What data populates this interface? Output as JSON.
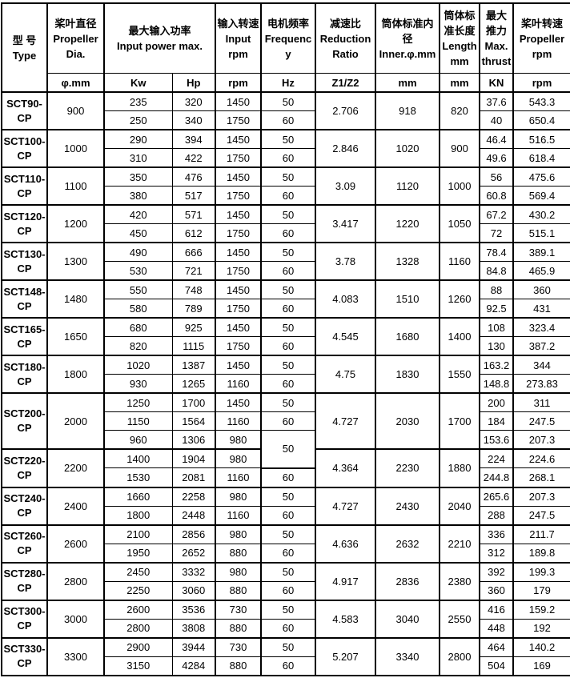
{
  "page": {
    "background": "#ffffff",
    "border_color": "#000000",
    "text_color": "#000000"
  },
  "table": {
    "header": {
      "type": "型 号\nType",
      "dia": "桨叶直径\nPropeller Dia.",
      "power": "最大输入功率\nInput power max.",
      "input_rpm": "输入转速\nInput rpm",
      "frequency": "电机频率\nFrequency",
      "ratio": "减速比\nReduction Ratio",
      "inner": "筒体标准内径\nInner.φ.mm",
      "length": "筒体标准长度\nLength mm",
      "thrust": "最大推力\nMax. thrust",
      "prop_rpm": "桨叶转速\nPropeller rpm"
    },
    "units": {
      "dia": "φ.mm",
      "kw": "Kw",
      "hp": "Hp",
      "rpm": "rpm",
      "hz": "Hz",
      "ratio": "Z1/Z2",
      "inner": "mm",
      "length": "mm",
      "thrust": "KN",
      "prop_rpm": "rpm"
    },
    "groups": [
      {
        "model": "SCT90-CP",
        "dia": "900",
        "ratio": "2.706",
        "inner": "918",
        "length": "820",
        "rows": [
          {
            "kw": "235",
            "hp": "320",
            "rpm": "1450",
            "hz": "50",
            "thrust": "37.6",
            "prop_rpm": "543.3"
          },
          {
            "kw": "250",
            "hp": "340",
            "rpm": "1750",
            "hz": "60",
            "thrust": "40",
            "prop_rpm": "650.4"
          }
        ]
      },
      {
        "model": "SCT100-CP",
        "dia": "1000",
        "ratio": "2.846",
        "inner": "1020",
        "length": "900",
        "rows": [
          {
            "kw": "290",
            "hp": "394",
            "rpm": "1450",
            "hz": "50",
            "thrust": "46.4",
            "prop_rpm": "516.5"
          },
          {
            "kw": "310",
            "hp": "422",
            "rpm": "1750",
            "hz": "60",
            "thrust": "49.6",
            "prop_rpm": "618.4"
          }
        ]
      },
      {
        "model": "SCT110-CP",
        "dia": "1100",
        "ratio": "3.09",
        "inner": "1120",
        "length": "1000",
        "rows": [
          {
            "kw": "350",
            "hp": "476",
            "rpm": "1450",
            "hz": "50",
            "thrust": "56",
            "prop_rpm": "475.6"
          },
          {
            "kw": "380",
            "hp": "517",
            "rpm": "1750",
            "hz": "60",
            "thrust": "60.8",
            "prop_rpm": "569.4"
          }
        ]
      },
      {
        "model": "SCT120-CP",
        "dia": "1200",
        "ratio": "3.417",
        "inner": "1220",
        "length": "1050",
        "rows": [
          {
            "kw": "420",
            "hp": "571",
            "rpm": "1450",
            "hz": "50",
            "thrust": "67.2",
            "prop_rpm": "430.2"
          },
          {
            "kw": "450",
            "hp": "612",
            "rpm": "1750",
            "hz": "60",
            "thrust": "72",
            "prop_rpm": "515.1"
          }
        ]
      },
      {
        "model": "SCT130-CP",
        "dia": "1300",
        "ratio": "3.78",
        "inner": "1328",
        "length": "1160",
        "rows": [
          {
            "kw": "490",
            "hp": "666",
            "rpm": "1450",
            "hz": "50",
            "thrust": "78.4",
            "prop_rpm": "389.1"
          },
          {
            "kw": "530",
            "hp": "721",
            "rpm": "1750",
            "hz": "60",
            "thrust": "84.8",
            "prop_rpm": "465.9"
          }
        ]
      },
      {
        "model": "SCT148-CP",
        "dia": "1480",
        "ratio": "4.083",
        "inner": "1510",
        "length": "1260",
        "rows": [
          {
            "kw": "550",
            "hp": "748",
            "rpm": "1450",
            "hz": "50",
            "thrust": "88",
            "prop_rpm": "360"
          },
          {
            "kw": "580",
            "hp": "789",
            "rpm": "1750",
            "hz": "60",
            "thrust": "92.5",
            "prop_rpm": "431"
          }
        ]
      },
      {
        "model": "SCT165-CP",
        "dia": "1650",
        "ratio": "4.545",
        "inner": "1680",
        "length": "1400",
        "rows": [
          {
            "kw": "680",
            "hp": "925",
            "rpm": "1450",
            "hz": "50",
            "thrust": "108",
            "prop_rpm": "323.4"
          },
          {
            "kw": "820",
            "hp": "1115",
            "rpm": "1750",
            "hz": "60",
            "thrust": "130",
            "prop_rpm": "387.2"
          }
        ]
      },
      {
        "model": "SCT180-CP",
        "dia": "1800",
        "ratio": "4.75",
        "inner": "1830",
        "length": "1550",
        "rows": [
          {
            "kw": "1020",
            "hp": "1387",
            "rpm": "1450",
            "hz": "50",
            "thrust": "163.2",
            "prop_rpm": "344"
          },
          {
            "kw": "930",
            "hp": "1265",
            "rpm": "1160",
            "hz": "60",
            "thrust": "148.8",
            "prop_rpm": "273.83"
          }
        ]
      },
      {
        "model": "SCT200-CP",
        "dia": "2000",
        "ratio": "4.727",
        "inner": "2030",
        "length": "1700",
        "rows": [
          {
            "kw": "1250",
            "hp": "1700",
            "rpm": "1450",
            "hz": "50",
            "thrust": "200",
            "prop_rpm": "311"
          },
          {
            "kw": "1150",
            "hp": "1564",
            "rpm": "1160",
            "hz": "60",
            "thrust": "184",
            "prop_rpm": "247.5"
          },
          {
            "kw": "960",
            "hp": "1306",
            "rpm": "980",
            "hz": "50",
            "hz_rowspan": 2,
            "thrust": "153.6",
            "prop_rpm": "207.3"
          }
        ]
      },
      {
        "model": "SCT220-CP",
        "dia": "2200",
        "ratio": "4.364",
        "inner": "2230",
        "length": "1880",
        "rows": [
          {
            "kw": "1400",
            "hp": "1904",
            "rpm": "980",
            "hz": "",
            "hz_merged_above": true,
            "thrust": "224",
            "prop_rpm": "224.6"
          },
          {
            "kw": "1530",
            "hp": "2081",
            "rpm": "1160",
            "hz": "60",
            "thrust": "244.8",
            "prop_rpm": "268.1"
          }
        ]
      },
      {
        "model": "SCT240-CP",
        "dia": "2400",
        "ratio": "4.727",
        "inner": "2430",
        "length": "2040",
        "rows": [
          {
            "kw": "1660",
            "hp": "2258",
            "rpm": "980",
            "hz": "50",
            "thrust": "265.6",
            "prop_rpm": "207.3"
          },
          {
            "kw": "1800",
            "hp": "2448",
            "rpm": "1160",
            "hz": "60",
            "thrust": "288",
            "prop_rpm": "247.5"
          }
        ]
      },
      {
        "model": "SCT260-CP",
        "dia": "2600",
        "ratio": "4.636",
        "inner": "2632",
        "length": "2210",
        "rows": [
          {
            "kw": "2100",
            "hp": "2856",
            "rpm": "980",
            "hz": "50",
            "thrust": "336",
            "prop_rpm": "211.7"
          },
          {
            "kw": "1950",
            "hp": "2652",
            "rpm": "880",
            "hz": "60",
            "thrust": "312",
            "prop_rpm": "189.8"
          }
        ]
      },
      {
        "model": "SCT280-CP",
        "dia": "2800",
        "ratio": "4.917",
        "inner": "2836",
        "length": "2380",
        "rows": [
          {
            "kw": "2450",
            "hp": "3332",
            "rpm": "980",
            "hz": "50",
            "thrust": "392",
            "prop_rpm": "199.3"
          },
          {
            "kw": "2250",
            "hp": "3060",
            "rpm": "880",
            "hz": "60",
            "thrust": "360",
            "prop_rpm": "179"
          }
        ]
      },
      {
        "model": "SCT300-CP",
        "dia": "3000",
        "ratio": "4.583",
        "inner": "3040",
        "length": "2550",
        "rows": [
          {
            "kw": "2600",
            "hp": "3536",
            "rpm": "730",
            "hz": "50",
            "thrust": "416",
            "prop_rpm": "159.2"
          },
          {
            "kw": "2800",
            "hp": "3808",
            "rpm": "880",
            "hz": "60",
            "thrust": "448",
            "prop_rpm": "192"
          }
        ]
      },
      {
        "model": "SCT330-CP",
        "dia": "3300",
        "ratio": "5.207",
        "inner": "3340",
        "length": "2800",
        "rows": [
          {
            "kw": "2900",
            "hp": "3944",
            "rpm": "730",
            "hz": "50",
            "thrust": "464",
            "prop_rpm": "140.2"
          },
          {
            "kw": "3150",
            "hp": "4284",
            "rpm": "880",
            "hz": "60",
            "thrust": "504",
            "prop_rpm": "169"
          }
        ]
      }
    ]
  }
}
